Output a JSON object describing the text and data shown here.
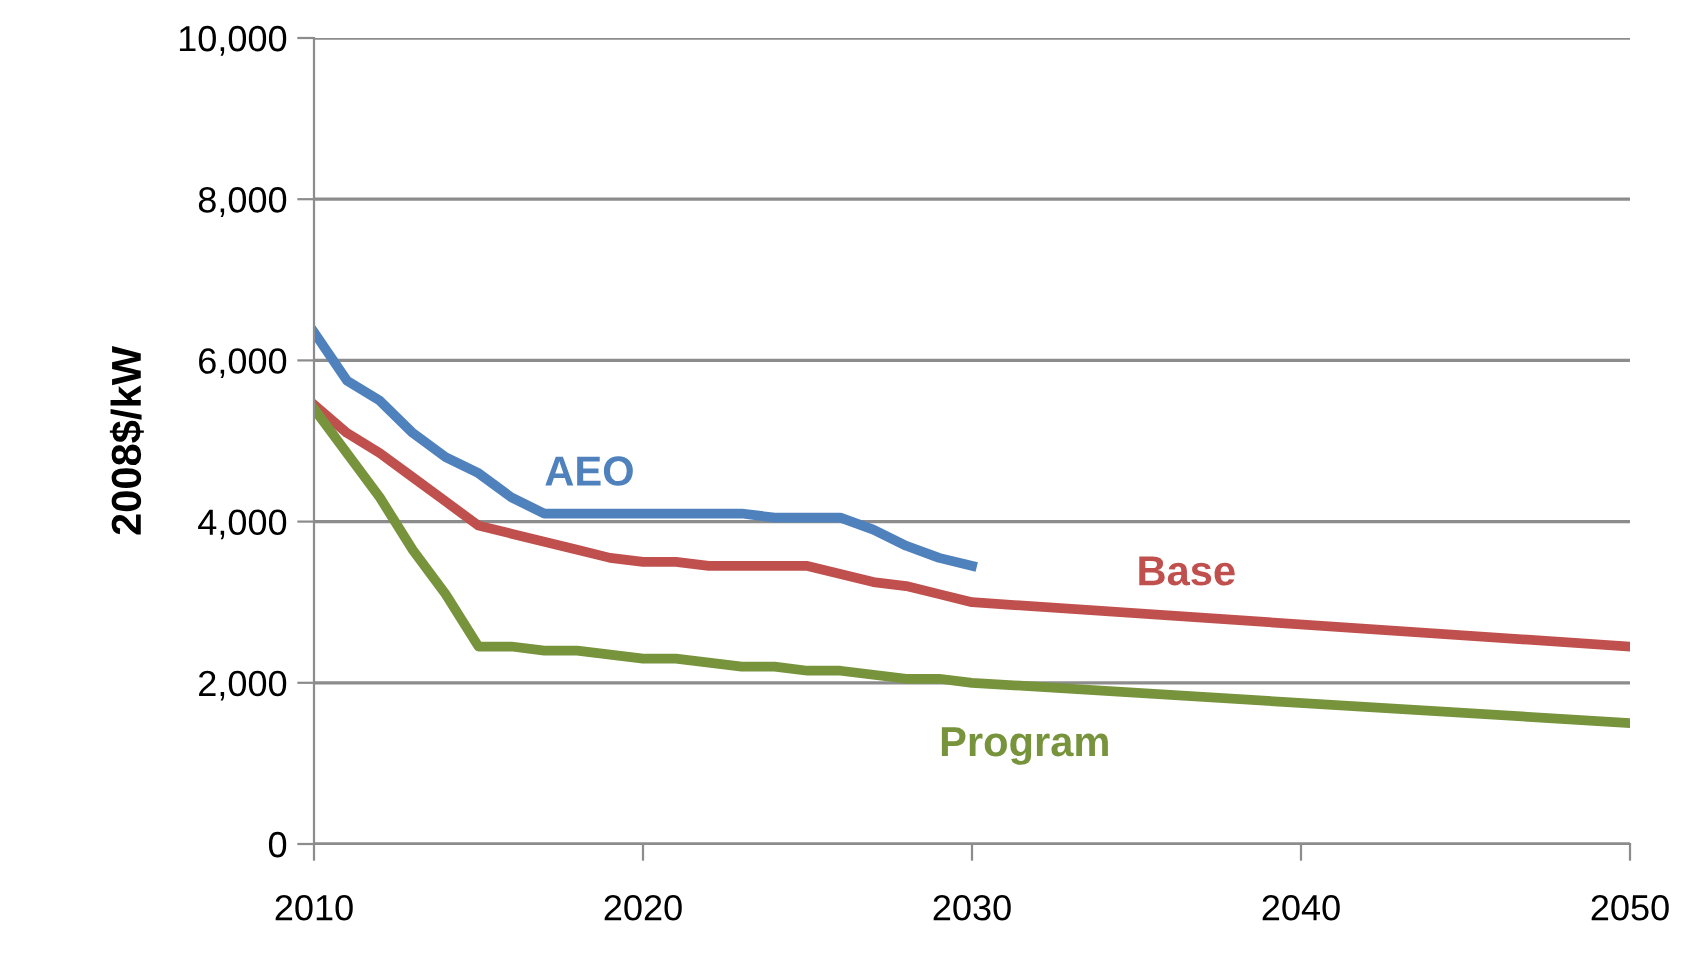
{
  "chart_data": {
    "type": "line",
    "ylabel": "2008$/kW",
    "xlim": [
      2010,
      2050
    ],
    "xticks": [
      2010,
      2020,
      2030,
      2040,
      2050
    ],
    "ylim": [
      0,
      10000
    ],
    "yticks": [
      {
        "value": 0,
        "label": "0"
      },
      {
        "value": 2000,
        "label": "2,000"
      },
      {
        "value": 4000,
        "label": "4,000"
      },
      {
        "value": 6000,
        "label": "6,000"
      },
      {
        "value": 8000,
        "label": "8,000"
      },
      {
        "value": 10000,
        "label": "10,000"
      }
    ],
    "grid": "y",
    "marker": "none",
    "line_style": "solid",
    "series": [
      {
        "name": "AEO",
        "color": "#4f81bd",
        "x": [
          2010,
          2011,
          2012,
          2013,
          2014,
          2015,
          2016,
          2017,
          2018,
          2019,
          2020,
          2021,
          2022,
          2023,
          2024,
          2025,
          2026,
          2027,
          2028,
          2029,
          2030
        ],
        "values": [
          6350,
          5750,
          5500,
          5100,
          4800,
          4600,
          4300,
          4100,
          4100,
          4100,
          4100,
          4100,
          4100,
          4100,
          4050,
          4050,
          4050,
          3900,
          3700,
          3550,
          3450
        ]
      },
      {
        "name": "Base",
        "color": "#c0504d",
        "x": [
          2010,
          2011,
          2012,
          2013,
          2014,
          2015,
          2016,
          2017,
          2018,
          2019,
          2020,
          2021,
          2022,
          2023,
          2024,
          2025,
          2026,
          2027,
          2028,
          2029,
          2030,
          2050
        ],
        "values": [
          5450,
          5100,
          4850,
          4550,
          4250,
          3950,
          3850,
          3750,
          3650,
          3550,
          3500,
          3500,
          3450,
          3450,
          3450,
          3450,
          3350,
          3250,
          3200,
          3100,
          3000,
          2450
        ]
      },
      {
        "name": "Program",
        "color": "#77933c",
        "x": [
          2010,
          2011,
          2012,
          2013,
          2014,
          2015,
          2016,
          2017,
          2018,
          2019,
          2020,
          2021,
          2022,
          2023,
          2024,
          2025,
          2026,
          2027,
          2028,
          2029,
          2030,
          2050
        ],
        "values": [
          5400,
          4850,
          4300,
          3650,
          3100,
          2450,
          2450,
          2400,
          2400,
          2350,
          2300,
          2300,
          2250,
          2200,
          2200,
          2150,
          2150,
          2100,
          2050,
          2050,
          2000,
          1500
        ]
      }
    ]
  }
}
